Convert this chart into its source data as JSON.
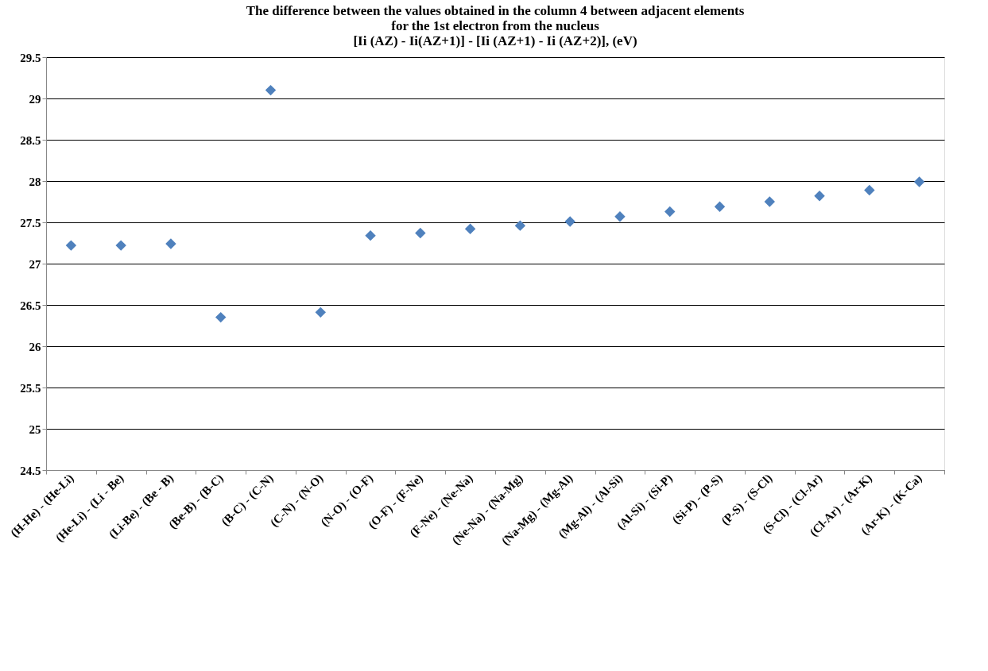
{
  "chart_data": {
    "type": "scatter",
    "title": [
      "The difference between the values obtained in the column 4 between adjacent elements",
      "for  the 1st electron from the nucleus",
      "[Ii (AZ) - Ii(AZ+1)] - [Ii (AZ+1) - Ii (AZ+2)], (eV)"
    ],
    "categories": [
      "(H-He) - (He-Li)",
      "(He-Li) - (Li - Be)",
      "(Li-Be) - (Be - B)",
      "(Be-B) - (B-C)",
      "(B-C) - (C-N)",
      "(C-N) - (N-O)",
      "(N-O) - (O-F)",
      "(O-F) - (F-Ne)",
      "(F-Ne) - (Ne-Na)",
      "(Ne-Na) - (Na-Mg)",
      "(Na-Mg) - (Mg-Al)",
      "(Mg-Al) - (Al-Si)",
      "(Al-Si) - (Si-P)",
      "(Si-P) - (P-S)",
      "(P-S) - (S-Cl)",
      "(S-Cl) - (Cl-Ar)",
      "(Cl-Ar) - (Ar-K)",
      "(Ar-K) - (K-Ca)"
    ],
    "values": [
      27.22,
      27.22,
      27.24,
      26.35,
      29.1,
      26.41,
      27.34,
      27.37,
      27.42,
      27.46,
      27.51,
      27.57,
      27.63,
      27.69,
      27.75,
      27.82,
      27.89,
      27.99
    ],
    "color": "#4f81bd",
    "marker": "diamond",
    "grid": "y",
    "ylim": [
      24.5,
      29.5
    ],
    "yticks": [
      24.5,
      25,
      25.5,
      26,
      26.5,
      27,
      27.5,
      28,
      28.5,
      29,
      29.5
    ]
  }
}
